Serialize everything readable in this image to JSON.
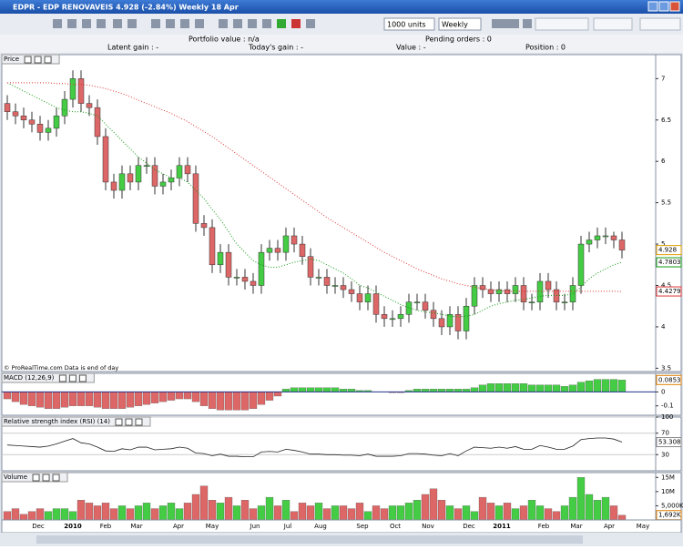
{
  "window": {
    "title": "EDPR - EDP RENOVAVEIS    4.928 (-2.84%)    Weekly   18 Apr"
  },
  "toolbar": {
    "units": "1000 units",
    "period": "Weekly"
  },
  "info": {
    "portfolio_value": "Portfolio value : n/a",
    "latent_gain": "Latent gain : -",
    "todays_gain": "Today's gain : -",
    "value": "Value : -",
    "pending_orders": "Pending orders : 0",
    "position": "Position : 0"
  },
  "footer": "© ProRealTime.com   Data is end of day",
  "time_axis": {
    "labels": [
      "Dec",
      "2010",
      "Feb",
      "Mar",
      "Apr",
      "May",
      "Jun",
      "Jul",
      "Aug",
      "Sep",
      "Oct",
      "Nov",
      "Dec",
      "2011",
      "Feb",
      "Mar",
      "Apr",
      "May"
    ]
  },
  "chart_data": [
    {
      "type": "candlestick",
      "title": "Price",
      "up_color": "#44cc44",
      "down_color": "#dd6666",
      "ylim": [
        3.46,
        7.29
      ],
      "yticks": [
        7,
        6.5,
        6,
        5.5,
        5,
        4.5,
        4,
        3.5
      ],
      "open": [
        6.7,
        6.6,
        6.55,
        6.5,
        6.45,
        6.35,
        6.4,
        6.55,
        6.75,
        7.0,
        6.7,
        6.65,
        6.3,
        5.75,
        5.65,
        5.85,
        5.75,
        5.95,
        5.95,
        5.7,
        5.75,
        5.8,
        5.95,
        5.85,
        5.25,
        5.2,
        4.75,
        4.9,
        4.6,
        4.6,
        4.55,
        4.5,
        4.9,
        4.95,
        4.9,
        5.1,
        5.0,
        4.85,
        4.6,
        4.6,
        4.5,
        4.5,
        4.45,
        4.4,
        4.3,
        4.4,
        4.15,
        4.1,
        4.1,
        4.15,
        4.3,
        4.3,
        4.2,
        4.1,
        4.0,
        4.15,
        3.95,
        4.25,
        4.5,
        4.45,
        4.4,
        4.45,
        4.4,
        4.5,
        4.3,
        4.3,
        4.55,
        4.45,
        4.3,
        4.3,
        4.5,
        5.0,
        5.05,
        5.1,
        5.1,
        5.05
      ],
      "high": [
        6.8,
        6.7,
        6.65,
        6.6,
        6.55,
        6.5,
        6.65,
        6.85,
        7.1,
        7.1,
        6.8,
        6.75,
        6.4,
        5.85,
        5.95,
        5.95,
        6.05,
        6.05,
        6.05,
        5.85,
        5.9,
        6.05,
        6.05,
        5.95,
        5.35,
        5.3,
        5.0,
        5.0,
        4.7,
        4.7,
        4.65,
        5.0,
        5.05,
        5.05,
        5.2,
        5.2,
        5.1,
        4.95,
        4.7,
        4.7,
        4.6,
        4.6,
        4.55,
        4.5,
        4.5,
        4.5,
        4.25,
        4.2,
        4.25,
        4.4,
        4.4,
        4.4,
        4.3,
        4.2,
        4.25,
        4.25,
        4.35,
        4.6,
        4.6,
        4.55,
        4.55,
        4.55,
        4.6,
        4.6,
        4.4,
        4.65,
        4.65,
        4.55,
        4.4,
        4.6,
        5.1,
        5.15,
        5.2,
        5.2,
        5.15,
        5.15
      ],
      "low": [
        6.5,
        6.45,
        6.4,
        6.35,
        6.25,
        6.25,
        6.3,
        6.45,
        6.65,
        6.6,
        6.55,
        6.2,
        5.65,
        5.55,
        5.55,
        5.65,
        5.65,
        5.85,
        5.6,
        5.6,
        5.65,
        5.7,
        5.75,
        5.15,
        5.1,
        4.65,
        4.65,
        4.5,
        4.5,
        4.45,
        4.4,
        4.4,
        4.8,
        4.8,
        4.8,
        4.9,
        4.75,
        4.5,
        4.5,
        4.4,
        4.4,
        4.35,
        4.3,
        4.2,
        4.2,
        4.05,
        4.0,
        4.0,
        4.0,
        4.05,
        4.2,
        4.1,
        4.0,
        3.9,
        3.9,
        3.85,
        3.85,
        4.15,
        4.35,
        4.3,
        4.3,
        4.3,
        4.3,
        4.2,
        4.2,
        4.2,
        4.35,
        4.2,
        4.2,
        4.2,
        4.4,
        4.9,
        4.95,
        5.0,
        4.95,
        4.828
      ],
      "close": [
        6.6,
        6.55,
        6.5,
        6.45,
        6.35,
        6.4,
        6.55,
        6.75,
        7.0,
        6.7,
        6.65,
        6.3,
        5.75,
        5.65,
        5.85,
        5.75,
        5.95,
        5.95,
        5.7,
        5.75,
        5.8,
        5.95,
        5.85,
        5.25,
        5.2,
        4.75,
        4.9,
        4.6,
        4.6,
        4.55,
        4.5,
        4.9,
        4.95,
        4.9,
        5.1,
        5.0,
        4.85,
        4.6,
        4.6,
        4.5,
        4.5,
        4.45,
        4.4,
        4.3,
        4.4,
        4.15,
        4.1,
        4.1,
        4.15,
        4.3,
        4.3,
        4.2,
        4.1,
        4.0,
        4.15,
        3.95,
        4.25,
        4.5,
        4.45,
        4.4,
        4.45,
        4.4,
        4.5,
        4.3,
        4.3,
        4.55,
        4.45,
        4.3,
        4.3,
        4.5,
        5.0,
        5.05,
        5.1,
        5.1,
        5.05,
        4.928
      ],
      "lines": [
        {
          "color": "#119911",
          "values": [
            6.95,
            6.9,
            6.85,
            6.8,
            6.75,
            6.7,
            6.65,
            6.62,
            6.6,
            6.6,
            6.58,
            6.55,
            6.45,
            6.35,
            6.25,
            6.15,
            6.05,
            5.98,
            5.9,
            5.85,
            5.8,
            5.8,
            5.75,
            5.65,
            5.55,
            5.42,
            5.3,
            5.15,
            5.0,
            4.9,
            4.8,
            4.75,
            4.72,
            4.72,
            4.75,
            4.78,
            4.8,
            4.82,
            4.8,
            4.75,
            4.7,
            4.65,
            4.58,
            4.5,
            4.47,
            4.42,
            4.37,
            4.32,
            4.27,
            4.23,
            4.2,
            4.18,
            4.17,
            4.15,
            4.13,
            4.12,
            4.13,
            4.15,
            4.2,
            4.25,
            4.28,
            4.3,
            4.32,
            4.33,
            4.35,
            4.37,
            4.38,
            4.38,
            4.38,
            4.4,
            4.48,
            4.58,
            4.65,
            4.7,
            4.75,
            4.7803
          ]
        },
        {
          "color": "#dd3333",
          "values": [
            6.95,
            6.95,
            6.95,
            6.95,
            6.95,
            6.95,
            6.94,
            6.94,
            6.93,
            6.93,
            6.92,
            6.9,
            6.88,
            6.85,
            6.82,
            6.78,
            6.74,
            6.7,
            6.66,
            6.62,
            6.58,
            6.53,
            6.48,
            6.42,
            6.36,
            6.3,
            6.23,
            6.16,
            6.09,
            6.02,
            5.95,
            5.88,
            5.81,
            5.74,
            5.67,
            5.6,
            5.53,
            5.46,
            5.39,
            5.32,
            5.26,
            5.2,
            5.14,
            5.08,
            5.02,
            4.96,
            4.9,
            4.85,
            4.8,
            4.75,
            4.7,
            4.66,
            4.62,
            4.58,
            4.55,
            4.52,
            4.5,
            4.48,
            4.46,
            4.45,
            4.44,
            4.43,
            4.43,
            4.43,
            4.43,
            4.43,
            4.43,
            4.43,
            4.43,
            4.43,
            4.43,
            4.43,
            4.43,
            4.43,
            4.43,
            4.4279
          ]
        }
      ]
    },
    {
      "type": "bar",
      "title": "MACD (12,26,9)",
      "pos_color": "#44cc44",
      "neg_color": "#dd6666",
      "ylim": [
        -0.167,
        0.133
      ],
      "yticks": [
        0,
        -0.1
      ],
      "values": [
        -0.05,
        -0.07,
        -0.09,
        -0.1,
        -0.11,
        -0.12,
        -0.12,
        -0.11,
        -0.1,
        -0.1,
        -0.1,
        -0.11,
        -0.12,
        -0.12,
        -0.12,
        -0.11,
        -0.1,
        -0.09,
        -0.08,
        -0.07,
        -0.06,
        -0.05,
        -0.05,
        -0.07,
        -0.1,
        -0.12,
        -0.13,
        -0.13,
        -0.13,
        -0.13,
        -0.12,
        -0.09,
        -0.06,
        -0.03,
        0.02,
        0.03,
        0.03,
        0.03,
        0.03,
        0.03,
        0.03,
        0.02,
        0.02,
        0.01,
        0.01,
        0.0,
        0.0,
        -0.005,
        -0.005,
        0.01,
        0.02,
        0.02,
        0.02,
        0.02,
        0.02,
        0.02,
        0.02,
        0.03,
        0.05,
        0.06,
        0.06,
        0.06,
        0.06,
        0.06,
        0.05,
        0.05,
        0.05,
        0.05,
        0.04,
        0.05,
        0.07,
        0.08,
        0.09,
        0.09,
        0.09,
        0.0853
      ]
    },
    {
      "type": "line",
      "title": "Relative strength index (RSI) (14)",
      "color": "#222222",
      "grid": true,
      "ylim": [
        0,
        100
      ],
      "yticks": [
        100,
        70,
        30
      ],
      "values": [
        48,
        47,
        46,
        45,
        44,
        46,
        50,
        55,
        60,
        52,
        50,
        44,
        37,
        36,
        41,
        39,
        44,
        44,
        39,
        40,
        41,
        44,
        42,
        33,
        32,
        28,
        31,
        27,
        27,
        26,
        26,
        35,
        36,
        35,
        40,
        38,
        35,
        31,
        31,
        30,
        30,
        29,
        29,
        28,
        31,
        27,
        27,
        27,
        28,
        32,
        32,
        31,
        29,
        28,
        32,
        28,
        37,
        44,
        43,
        42,
        44,
        42,
        45,
        40,
        40,
        47,
        44,
        40,
        40,
        46,
        58,
        60,
        61,
        61,
        59,
        53.308
      ]
    },
    {
      "type": "bar",
      "title": "Volume",
      "up_color": "#44cc44",
      "down_color": "#dd6666",
      "ylim": [
        0,
        16700000
      ],
      "yticks": [
        {
          "value": 15000000,
          "label": "15M"
        },
        {
          "value": 10000000,
          "label": "10M"
        },
        {
          "value": 5000000,
          "label": "5,000K"
        }
      ],
      "values": [
        3000000,
        4000000,
        2000000,
        3000000,
        4000000,
        3000000,
        4000000,
        4000000,
        3000000,
        7000000,
        6000000,
        5000000,
        6000000,
        4000000,
        5000000,
        4000000,
        5000000,
        6000000,
        4000000,
        5000000,
        6000000,
        4000000,
        6000000,
        9000000,
        12000000,
        7000000,
        6000000,
        8000000,
        5000000,
        7000000,
        4000000,
        5000000,
        8000000,
        5000000,
        7000000,
        3000000,
        6000000,
        5000000,
        6000000,
        4000000,
        5000000,
        5000000,
        4000000,
        6000000,
        3000000,
        5000000,
        4000000,
        5000000,
        5000000,
        6000000,
        7000000,
        9000000,
        11000000,
        7000000,
        5000000,
        4000000,
        5000000,
        3000000,
        8000000,
        6000000,
        5000000,
        6000000,
        4000000,
        5000000,
        7000000,
        5000000,
        4000000,
        3000000,
        5000000,
        8000000,
        15000000,
        9000000,
        7000000,
        8000000,
        5000000,
        1692000
      ],
      "value_labels": [
        null,
        null,
        null,
        null,
        null,
        null,
        null,
        null,
        null,
        null,
        null,
        null,
        null,
        null,
        null,
        null,
        null,
        null,
        null,
        null,
        null,
        null,
        null,
        null,
        null,
        null,
        null,
        null,
        null,
        null,
        null,
        null,
        null,
        null,
        null,
        null,
        null,
        null,
        null,
        null,
        null,
        null,
        null,
        null,
        null,
        null,
        null,
        null,
        null,
        null,
        null,
        null,
        null,
        null,
        null,
        null,
        null,
        null,
        null,
        null,
        null,
        null,
        null,
        null,
        null,
        null,
        null,
        null,
        null,
        null,
        null,
        null,
        null,
        null,
        null,
        "1,692K"
      ]
    }
  ]
}
